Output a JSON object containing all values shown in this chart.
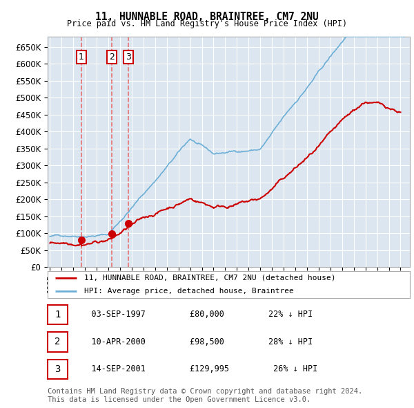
{
  "title": "11, HUNNABLE ROAD, BRAINTREE, CM7 2NU",
  "subtitle": "Price paid vs. HM Land Registry's House Price Index (HPI)",
  "ylabel_ticks": [
    "£0",
    "£50K",
    "£100K",
    "£150K",
    "£200K",
    "£250K",
    "£300K",
    "£350K",
    "£400K",
    "£450K",
    "£500K",
    "£550K",
    "£600K",
    "£650K"
  ],
  "ytick_values": [
    0,
    50000,
    100000,
    150000,
    200000,
    250000,
    300000,
    350000,
    400000,
    450000,
    500000,
    550000,
    600000,
    650000
  ],
  "ylim": [
    0,
    680000
  ],
  "xlim_start": 1994.8,
  "xlim_end": 2025.8,
  "plot_bg_color": "#dce6f0",
  "grid_color": "#ffffff",
  "sale_dates": [
    1997.67,
    2000.27,
    2001.71
  ],
  "sale_prices": [
    80000,
    98500,
    129995
  ],
  "sale_labels": [
    "1",
    "2",
    "3"
  ],
  "legend_line1": "11, HUNNABLE ROAD, BRAINTREE, CM7 2NU (detached house)",
  "legend_line2": "HPI: Average price, detached house, Braintree",
  "table_rows": [
    {
      "num": "1",
      "date": "03-SEP-1997",
      "price": "£80,000",
      "hpi": "22% ↓ HPI"
    },
    {
      "num": "2",
      "date": "10-APR-2000",
      "price": "£98,500",
      "hpi": "28% ↓ HPI"
    },
    {
      "num": "3",
      "date": "14-SEP-2001",
      "price": "£129,995",
      "hpi": "26% ↓ HPI"
    }
  ],
  "footer": "Contains HM Land Registry data © Crown copyright and database right 2024.\nThis data is licensed under the Open Government Licence v3.0.",
  "red_color": "#cc0000",
  "blue_color": "#6baed6",
  "dashed_color": "#e87070"
}
